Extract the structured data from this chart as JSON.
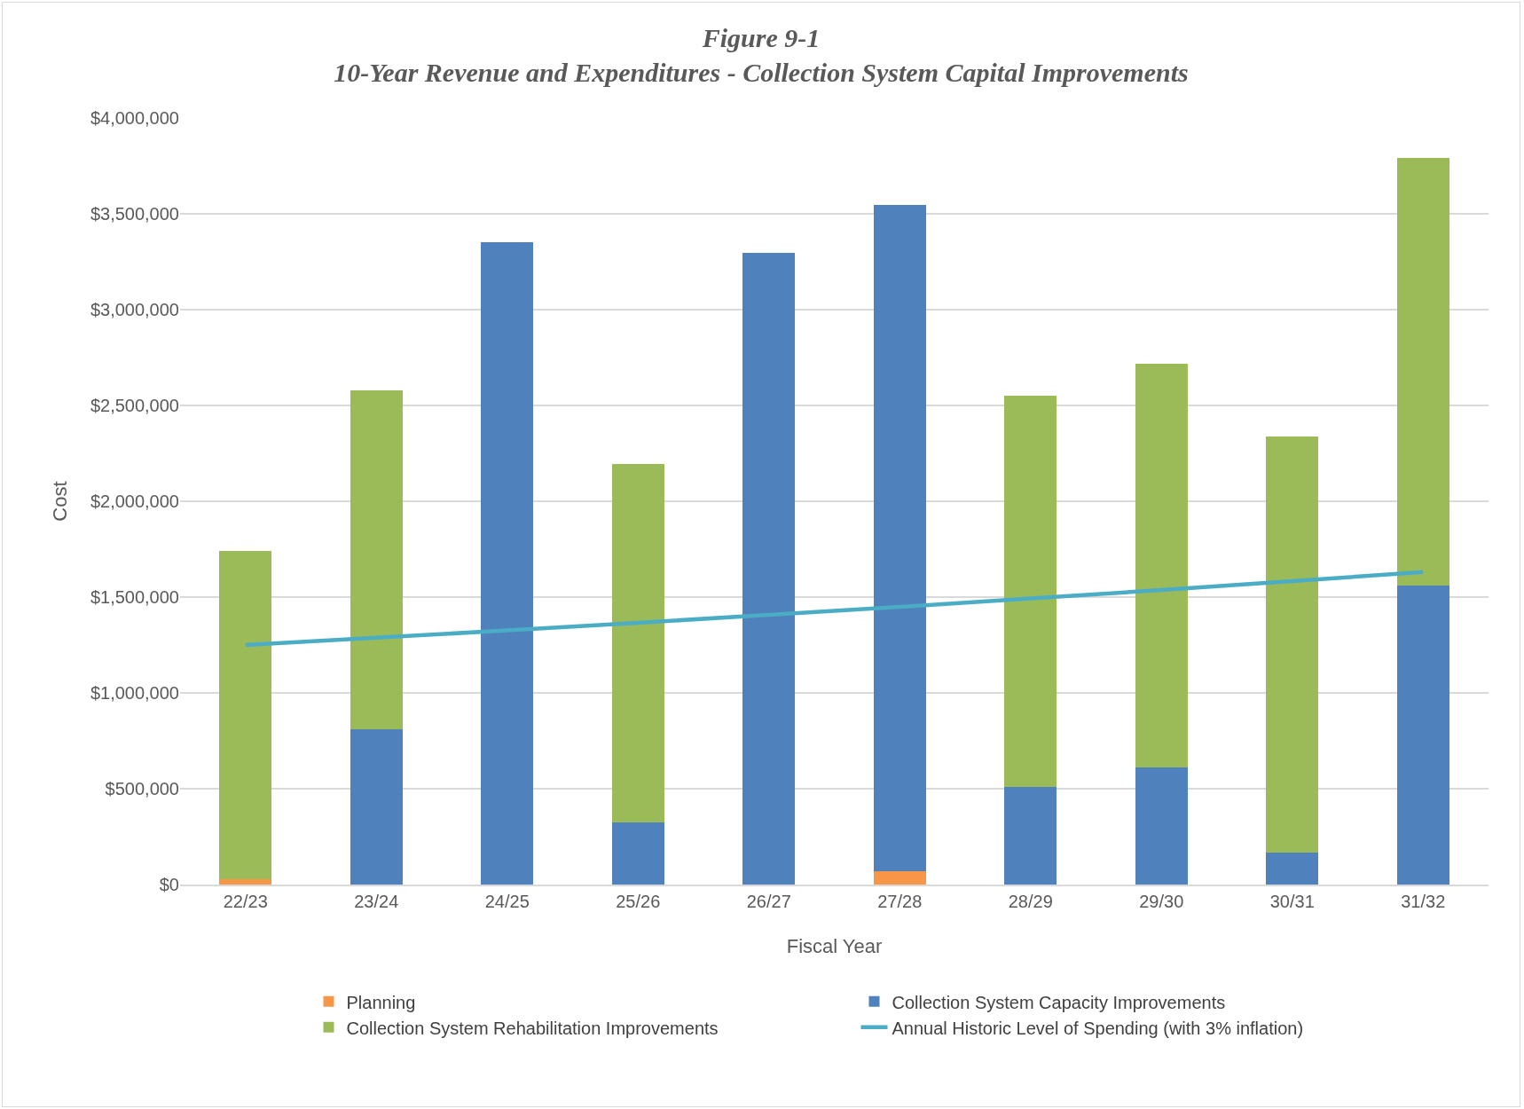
{
  "chart_data": {
    "type": "bar",
    "title": "Figure 9-1\n10-Year Revenue and Expenditures - Collection System Capital Improvements",
    "xlabel": "Fiscal Year",
    "ylabel": "Cost",
    "categories": [
      "22/23",
      "23/24",
      "24/25",
      "25/26",
      "26/27",
      "27/28",
      "28/29",
      "29/30",
      "30/31",
      "31/32"
    ],
    "stacked": true,
    "series": [
      {
        "name": "Planning",
        "color": "#f79646",
        "values": [
          30000,
          0,
          0,
          0,
          0,
          69000,
          0,
          0,
          0,
          0
        ]
      },
      {
        "name": "Collection System Capacity Improvements",
        "color": "#4f81bd",
        "values": [
          0,
          810000,
          3352000,
          324000,
          3298000,
          3479000,
          510000,
          609000,
          167000,
          1561000
        ]
      },
      {
        "name": "Collection System Rehabilitation Improvements",
        "color": "#9bbb59",
        "values": [
          1712000,
          1767000,
          0,
          1870000,
          0,
          0,
          2042000,
          2110000,
          2169000,
          2233000
        ]
      },
      {
        "name": "Annual Historic Level of Spending (with 3% inflation)",
        "type": "line",
        "color": "#4bacc6",
        "marker": "none",
        "line_style": "solid",
        "values": [
          1250000,
          1288000,
          1326000,
          1366000,
          1407000,
          1449000,
          1493000,
          1537000,
          1583000,
          1631000
        ]
      }
    ],
    "ylim": [
      0,
      4000000
    ],
    "yticks": [
      {
        "value": 0,
        "label": "$0"
      },
      {
        "value": 500000,
        "label": "$500,000"
      },
      {
        "value": 1000000,
        "label": "$1,000,000"
      },
      {
        "value": 1500000,
        "label": "$1,500,000"
      },
      {
        "value": 2000000,
        "label": "$2,000,000"
      },
      {
        "value": 2500000,
        "label": "$2,500,000"
      },
      {
        "value": 3000000,
        "label": "$3,000,000"
      },
      {
        "value": 3500000,
        "label": "$3,500,000"
      },
      {
        "value": 4000000,
        "label": "$4,000,000"
      }
    ],
    "grid": "y",
    "legend": "bottom"
  }
}
